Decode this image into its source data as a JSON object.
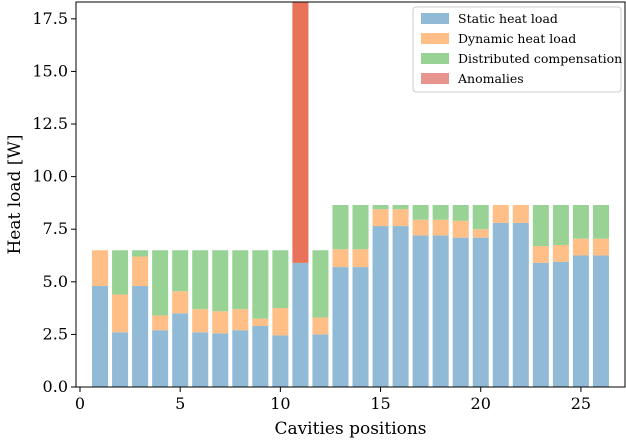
{
  "chart_data": {
    "type": "bar",
    "stacked": true,
    "xlabel": "Cavities positions",
    "ylabel": "Heat load [W]",
    "xlim": [
      -0.2,
      27.2
    ],
    "ylim": [
      0,
      18.3
    ],
    "xticks": [
      0,
      5,
      10,
      15,
      20,
      25
    ],
    "yticks": [
      0.0,
      2.5,
      5.0,
      7.5,
      10.0,
      12.5,
      15.0,
      17.5
    ],
    "ytick_labels": [
      "0.0",
      "2.5",
      "5.0",
      "7.5",
      "10.0",
      "12.5",
      "15.0",
      "17.5"
    ],
    "legend_position": "top-right",
    "grid": false,
    "x": [
      1,
      2,
      3,
      4,
      5,
      6,
      7,
      8,
      9,
      10,
      11,
      12,
      13,
      14,
      15,
      16,
      17,
      18,
      19,
      20,
      21,
      22,
      23,
      24,
      25,
      26
    ],
    "series": [
      {
        "name": "Static heat load",
        "color": "#91bad6",
        "values": [
          4.8,
          2.6,
          4.8,
          2.7,
          3.5,
          2.6,
          2.55,
          2.7,
          2.9,
          2.45,
          5.9,
          2.5,
          5.7,
          5.7,
          7.65,
          7.65,
          7.2,
          7.2,
          7.1,
          7.1,
          7.8,
          7.8,
          5.9,
          5.95,
          6.25,
          6.25
        ]
      },
      {
        "name": "Dynamic heat load",
        "color": "#ffbf86",
        "values": [
          1.7,
          1.8,
          1.4,
          0.7,
          1.05,
          1.1,
          1.05,
          1.0,
          0.35,
          1.3,
          0.0,
          0.8,
          0.85,
          0.85,
          0.8,
          0.8,
          0.75,
          0.75,
          0.8,
          0.4,
          0.85,
          0.85,
          0.8,
          0.8,
          0.8,
          0.8
        ]
      },
      {
        "name": "Distributed compensation",
        "color": "#98d294",
        "values": [
          0.0,
          2.1,
          0.3,
          3.1,
          1.95,
          2.8,
          2.9,
          2.8,
          3.25,
          2.75,
          0.0,
          3.2,
          2.1,
          2.1,
          0.2,
          0.2,
          0.7,
          0.7,
          0.75,
          1.15,
          0.0,
          0.0,
          1.95,
          1.9,
          1.6,
          1.6
        ]
      },
      {
        "name": "Anomalies",
        "color": "#e8735a",
        "legend_color": "#e89590",
        "values": [
          0,
          0,
          0,
          0,
          0,
          0,
          0,
          0,
          0,
          0,
          12.4,
          0,
          0,
          0,
          0,
          0,
          0,
          0,
          0,
          0,
          0,
          0,
          0,
          0,
          0,
          0
        ]
      }
    ]
  }
}
